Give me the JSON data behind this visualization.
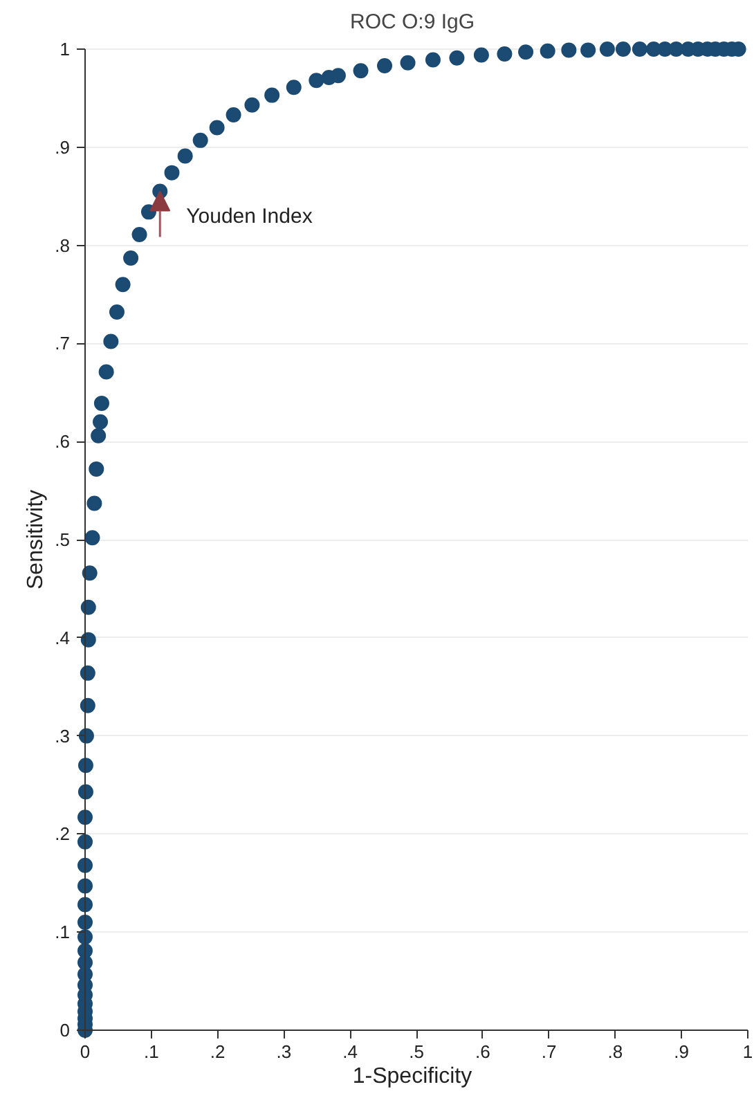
{
  "chart_data": {
    "type": "scatter",
    "title": "ROC O:9 IgG",
    "xlabel": "1-Specificity",
    "ylabel": "Sensitivity",
    "x": [
      0,
      0,
      0,
      0,
      0,
      0,
      0,
      0,
      0,
      0,
      0,
      0,
      0,
      0,
      0,
      0,
      0,
      0.001,
      0.001,
      0.002,
      0.004,
      0.004,
      0.005,
      0.005,
      0.007,
      0.011,
      0.014,
      0.017,
      0.02,
      0.023,
      0.025,
      0.032,
      0.039,
      0.048,
      0.057,
      0.069,
      0.082,
      0.096,
      0.113,
      0.131,
      0.151,
      0.174,
      0.199,
      0.224,
      0.252,
      0.282,
      0.315,
      0.349,
      0.368,
      0.382,
      0.416,
      0.452,
      0.487,
      0.525,
      0.561,
      0.598,
      0.633,
      0.665,
      0.698,
      0.73,
      0.759,
      0.788,
      0.812,
      0.837,
      0.858,
      0.875,
      0.892,
      0.91,
      0.925,
      0.939,
      0.951,
      0.964,
      0.976,
      0.986
    ],
    "values": [
      0,
      0.006,
      0.012,
      0.019,
      0.027,
      0.036,
      0.046,
      0.057,
      0.069,
      0.081,
      0.095,
      0.11,
      0.128,
      0.147,
      0.168,
      0.192,
      0.217,
      0.243,
      0.27,
      0.3,
      0.331,
      0.364,
      0.398,
      0.431,
      0.466,
      0.502,
      0.537,
      0.572,
      0.606,
      0.62,
      0.639,
      0.671,
      0.702,
      0.732,
      0.76,
      0.787,
      0.811,
      0.834,
      0.855,
      0.874,
      0.891,
      0.907,
      0.92,
      0.933,
      0.943,
      0.953,
      0.961,
      0.968,
      0.971,
      0.973,
      0.978,
      0.983,
      0.986,
      0.989,
      0.991,
      0.994,
      0.995,
      0.997,
      0.998,
      0.999,
      0.999,
      1.0,
      1.0,
      1.0,
      1.0,
      1.0,
      1.0,
      1.0,
      1.0,
      1.0,
      1.0,
      1.0,
      1.0,
      1.0
    ],
    "color": "#1b4a72",
    "marker": "circle",
    "grid": "y",
    "xlim": [
      0,
      1
    ],
    "ylim": [
      0,
      1
    ],
    "xticks": [
      0,
      {
        "value": 0.1,
        "label": ".1"
      },
      {
        "value": 0.2,
        "label": ".2"
      },
      {
        "value": 0.3,
        "label": ".3"
      },
      {
        "value": 0.4,
        "label": ".4"
      },
      {
        "value": 0.5,
        "label": ".5"
      },
      {
        "value": 0.6,
        "label": ".6"
      },
      {
        "value": 0.7,
        "label": ".7"
      },
      {
        "value": 0.8,
        "label": ".8"
      },
      {
        "value": 0.9,
        "label": ".9"
      },
      1
    ],
    "yticks": [
      0,
      {
        "value": 0.1,
        "label": ".1"
      },
      {
        "value": 0.2,
        "label": ".2"
      },
      {
        "value": 0.3,
        "label": ".3"
      },
      {
        "value": 0.4,
        "label": ".4"
      },
      {
        "value": 0.5,
        "label": ".5"
      },
      {
        "value": 0.6,
        "label": ".6"
      },
      {
        "value": 0.7,
        "label": ".7"
      },
      {
        "value": 0.8,
        "label": ".8"
      },
      {
        "value": 0.9,
        "label": ".9"
      },
      1
    ],
    "annotations": [
      {
        "text": "Youden Index",
        "x": 0.113,
        "y": 0.855
      }
    ]
  }
}
